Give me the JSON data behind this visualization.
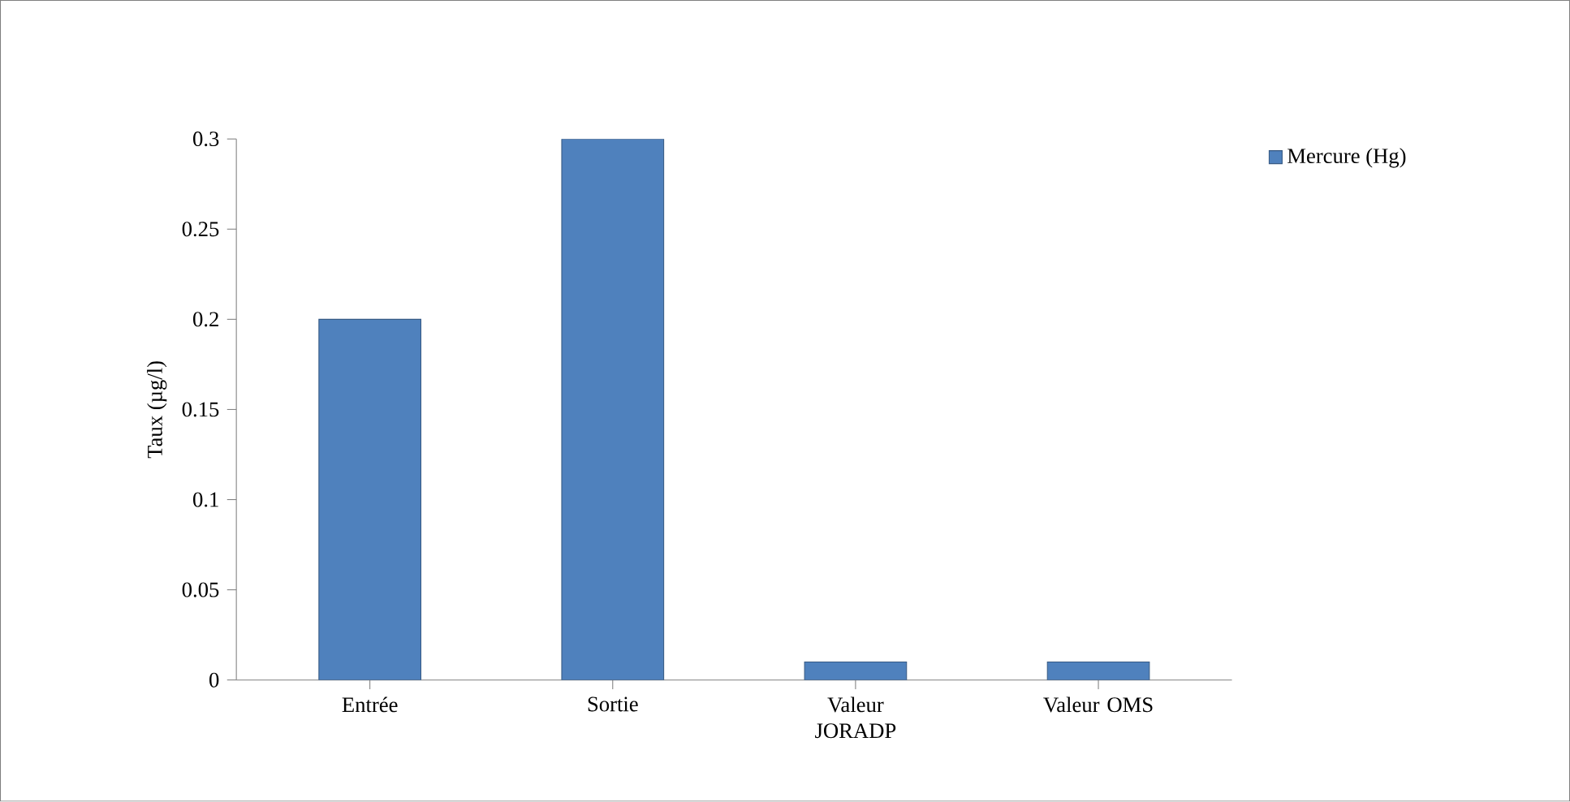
{
  "chart_data": {
    "type": "bar",
    "ylabel": "Taux (µg/l)",
    "categories": [
      "Entrée",
      "Sortie",
      "Valeur JORADP",
      "Valeur OMS"
    ],
    "series": [
      {
        "name": "Mercure (Hg)",
        "color": "#4f81bd",
        "values": [
          0.2,
          0.3,
          0.01,
          0.01
        ]
      }
    ],
    "ylim": [
      0,
      0.3
    ],
    "yticks": [
      0,
      0.05,
      0.1,
      0.15,
      0.2,
      0.25,
      0.3
    ],
    "legend": "top right"
  }
}
